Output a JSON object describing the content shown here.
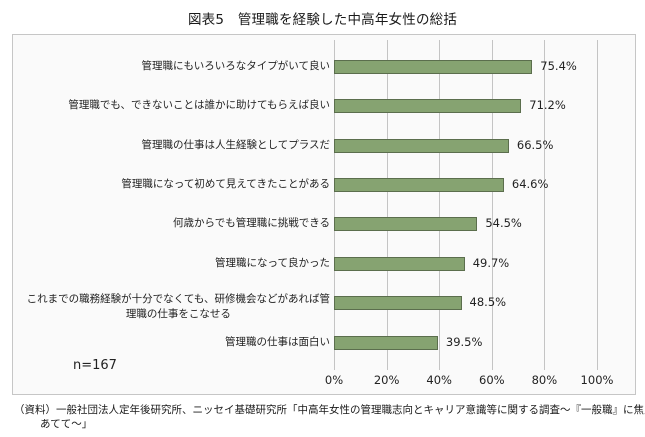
{
  "title": "図表5　管理職を経験した中高年女性の総括",
  "sample": "n=167",
  "source": "（資料）一般社団法人定年後研究所、ニッセイ基礎研究所「中高年女性の管理職志向とキャリア意識等に関する調査～『一般職』に焦点をあてて～」",
  "axis_ticks": [
    "0%",
    "20%",
    "40%",
    "60%",
    "80%",
    "100%"
  ],
  "categories": [
    "管理職にもいろいろなタイプがいて良い",
    "管理職でも、できないことは誰かに助けてもらえば良い",
    "管理職の仕事は人生経験としてプラスだ",
    "管理職になって初めて見えてきたことがある",
    "何歳からでも管理職に挑戦できる",
    "管理職になって良かった",
    "これまでの職務経験が十分でなくても、研修機会などがあれば管理職の仕事をこなせる",
    "管理職の仕事は面白い"
  ],
  "category_lines": [
    [
      "管理職にもいろいろなタイプがいて良い"
    ],
    [
      "管理職でも、できないことは誰かに助けてもらえば良い"
    ],
    [
      "管理職の仕事は人生経験としてプラスだ"
    ],
    [
      "管理職になって初めて見えてきたことがある"
    ],
    [
      "何歳からでも管理職に挑戦できる"
    ],
    [
      "管理職になって良かった"
    ],
    [
      "これまでの職務経験が十分でなくても、研修機会などがあれば管",
      "理職の仕事をこなせる"
    ],
    [
      "管理職の仕事は面白い"
    ]
  ],
  "value_labels": [
    "75.4%",
    "71.2%",
    "66.5%",
    "64.6%",
    "54.5%",
    "49.7%",
    "48.5%",
    "39.5%"
  ],
  "colors": {
    "bar_fill": "#86a371",
    "bar_border": "#5b6e4d",
    "grid": "#c4c4c4",
    "frame": "#c6c6c6"
  },
  "chart_data": {
    "type": "bar",
    "orientation": "horizontal",
    "title": "図表5　管理職を経験した中高年女性の総括",
    "categories": [
      "管理職にもいろいろなタイプがいて良い",
      "管理職でも、できないことは誰かに助けてもらえば良い",
      "管理職の仕事は人生経験としてプラスだ",
      "管理職になって初めて見えてきたことがある",
      "何歳からでも管理職に挑戦できる",
      "管理職になって良かった",
      "これまでの職務経験が十分でなくても、研修機会などがあれば管理職の仕事をこなせる",
      "管理職の仕事は面白い"
    ],
    "values": [
      75.4,
      71.2,
      66.5,
      64.6,
      54.5,
      49.7,
      48.5,
      39.5
    ],
    "unit": "%",
    "xlabel": "",
    "ylabel": "",
    "xlim": [
      0,
      100
    ],
    "xticks": [
      0,
      20,
      40,
      60,
      80,
      100
    ],
    "grid": true,
    "legend": null,
    "annotations": [
      "n=167"
    ],
    "source": "（資料）一般社団法人定年後研究所、ニッセイ基礎研究所「中高年女性の管理職志向とキャリア意識等に関する調査～『一般職』に焦点をあてて～」"
  }
}
